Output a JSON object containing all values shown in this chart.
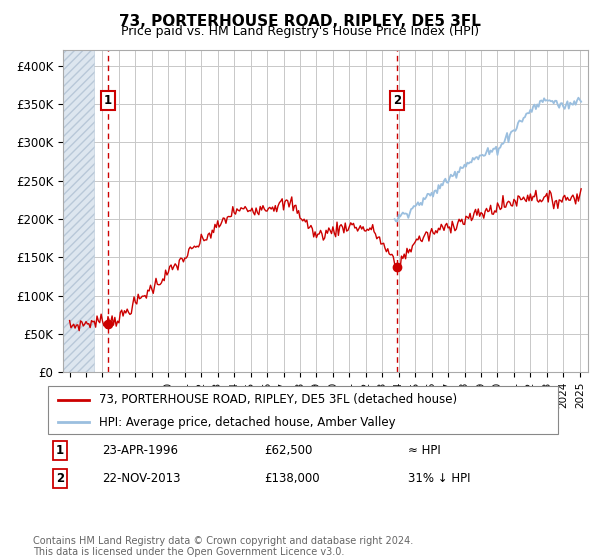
{
  "title": "73, PORTERHOUSE ROAD, RIPLEY, DE5 3FL",
  "subtitle": "Price paid vs. HM Land Registry's House Price Index (HPI)",
  "ylim": [
    0,
    420000
  ],
  "yticks": [
    0,
    50000,
    100000,
    150000,
    200000,
    250000,
    300000,
    350000,
    400000
  ],
  "ytick_labels": [
    "£0",
    "£50K",
    "£100K",
    "£150K",
    "£200K",
    "£250K",
    "£300K",
    "£350K",
    "£400K"
  ],
  "sale1_x": 1996.31,
  "sale1_y": 62500,
  "sale2_x": 2013.9,
  "sale2_y": 138000,
  "hpi_color": "#9bbfdf",
  "price_color": "#cc0000",
  "vline_color": "#cc0000",
  "grid_color": "#c8c8c8",
  "legend1": "73, PORTERHOUSE ROAD, RIPLEY, DE5 3FL (detached house)",
  "legend2": "HPI: Average price, detached house, Amber Valley",
  "note1_label": "1",
  "note1_date": "23-APR-1996",
  "note1_price": "£62,500",
  "note1_rel": "≈ HPI",
  "note2_label": "2",
  "note2_date": "22-NOV-2013",
  "note2_price": "£138,000",
  "note2_rel": "31% ↓ HPI",
  "footer": "Contains HM Land Registry data © Crown copyright and database right 2024.\nThis data is licensed under the Open Government Licence v3.0.",
  "xlim_start": 1993.6,
  "xlim_end": 2025.5,
  "hatch_end": 1995.5,
  "hpi_start_year": 2013.75
}
